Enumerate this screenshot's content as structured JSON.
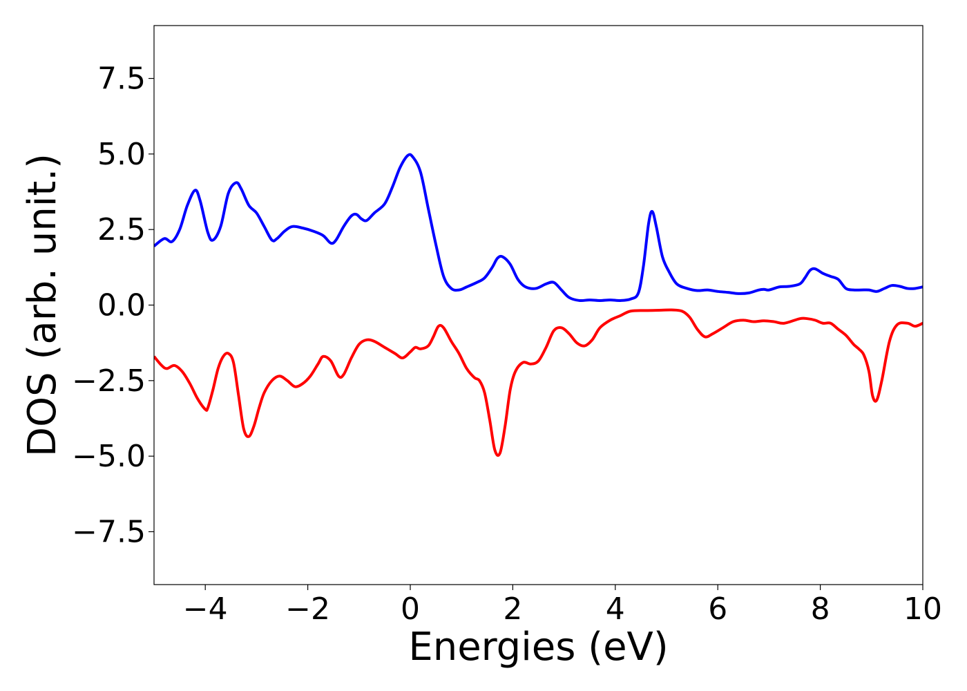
{
  "chart_data": {
    "type": "line",
    "title": "",
    "xlabel": "Energies (eV)",
    "ylabel": "DOS (arb. unit.)",
    "xlim": [
      -5,
      10
    ],
    "ylim": [
      -9.25,
      9.25
    ],
    "xticks": [
      -4,
      -2,
      0,
      2,
      4,
      6,
      8,
      10
    ],
    "xtick_labels": [
      "−4",
      "−2",
      "0",
      "2",
      "4",
      "6",
      "8",
      "10"
    ],
    "yticks": [
      7.5,
      5.0,
      2.5,
      0.0,
      -2.5,
      -5.0,
      -7.5
    ],
    "ytick_labels": [
      "7.5",
      "5.0",
      "2.5",
      "0.0",
      "−2.5",
      "−5.0",
      "−7.5"
    ],
    "grid": false,
    "legend": "none",
    "series": [
      {
        "color": "#0000ff",
        "x": [
          -5.0,
          -4.8,
          -4.65,
          -4.5,
          -4.35,
          -4.2,
          -4.1,
          -3.95,
          -3.85,
          -3.7,
          -3.55,
          -3.4,
          -3.3,
          -3.15,
          -3.0,
          -2.85,
          -2.7,
          -2.6,
          -2.45,
          -2.3,
          -2.1,
          -1.9,
          -1.7,
          -1.55,
          -1.45,
          -1.3,
          -1.15,
          -1.05,
          -0.95,
          -0.85,
          -0.7,
          -0.5,
          -0.35,
          -0.2,
          -0.05,
          0.05,
          0.2,
          0.35,
          0.5,
          0.65,
          0.8,
          0.95,
          1.1,
          1.3,
          1.45,
          1.6,
          1.7,
          1.8,
          1.95,
          2.1,
          2.25,
          2.45,
          2.65,
          2.8,
          2.95,
          3.1,
          3.3,
          3.5,
          3.7,
          3.9,
          4.1,
          4.3,
          4.45,
          4.55,
          4.65,
          4.72,
          4.8,
          4.92,
          5.05,
          5.2,
          5.4,
          5.6,
          5.8,
          6.0,
          6.2,
          6.4,
          6.6,
          6.8,
          6.9,
          7.0,
          7.2,
          7.4,
          7.6,
          7.7,
          7.8,
          7.9,
          8.05,
          8.2,
          8.35,
          8.5,
          8.65,
          8.8,
          8.95,
          9.1,
          9.25,
          9.4,
          9.55,
          9.7,
          9.85,
          10.0
        ],
        "y": [
          1.95,
          2.2,
          2.1,
          2.5,
          3.3,
          3.8,
          3.45,
          2.4,
          2.15,
          2.6,
          3.7,
          4.05,
          3.85,
          3.3,
          3.05,
          2.6,
          2.15,
          2.2,
          2.45,
          2.6,
          2.55,
          2.45,
          2.3,
          2.05,
          2.15,
          2.6,
          2.95,
          3.0,
          2.85,
          2.8,
          3.05,
          3.35,
          3.9,
          4.55,
          4.95,
          4.9,
          4.4,
          3.2,
          2.0,
          0.95,
          0.55,
          0.5,
          0.6,
          0.75,
          0.9,
          1.25,
          1.55,
          1.6,
          1.35,
          0.85,
          0.6,
          0.55,
          0.7,
          0.75,
          0.5,
          0.25,
          0.15,
          0.17,
          0.15,
          0.17,
          0.15,
          0.2,
          0.4,
          1.3,
          2.7,
          3.1,
          2.6,
          1.6,
          1.1,
          0.7,
          0.55,
          0.48,
          0.5,
          0.45,
          0.42,
          0.38,
          0.4,
          0.5,
          0.52,
          0.5,
          0.6,
          0.62,
          0.7,
          0.9,
          1.15,
          1.2,
          1.05,
          0.95,
          0.85,
          0.55,
          0.5,
          0.5,
          0.5,
          0.45,
          0.55,
          0.65,
          0.62,
          0.55,
          0.55,
          0.6
        ]
      },
      {
        "color": "#ff0000",
        "x": [
          -5.0,
          -4.85,
          -4.75,
          -4.6,
          -4.45,
          -4.3,
          -4.15,
          -4.0,
          -3.95,
          -3.85,
          -3.75,
          -3.65,
          -3.55,
          -3.45,
          -3.35,
          -3.25,
          -3.15,
          -3.05,
          -2.95,
          -2.85,
          -2.7,
          -2.55,
          -2.4,
          -2.25,
          -2.1,
          -1.95,
          -1.8,
          -1.7,
          -1.55,
          -1.4,
          -1.3,
          -1.15,
          -1.0,
          -0.85,
          -0.7,
          -0.5,
          -0.3,
          -0.15,
          0.0,
          0.1,
          0.2,
          0.35,
          0.45,
          0.55,
          0.65,
          0.8,
          0.95,
          1.1,
          1.25,
          1.35,
          1.45,
          1.55,
          1.65,
          1.75,
          1.85,
          1.95,
          2.05,
          2.2,
          2.35,
          2.5,
          2.65,
          2.8,
          2.95,
          3.1,
          3.25,
          3.4,
          3.55,
          3.7,
          3.9,
          4.1,
          4.3,
          4.6,
          4.9,
          5.1,
          5.3,
          5.45,
          5.6,
          5.75,
          5.9,
          6.1,
          6.3,
          6.5,
          6.7,
          6.9,
          7.1,
          7.3,
          7.6,
          7.75,
          7.9,
          8.05,
          8.2,
          8.35,
          8.5,
          8.65,
          8.75,
          8.85,
          8.95,
          9.02,
          9.1,
          9.2,
          9.35,
          9.5,
          9.7,
          9.85,
          10.0
        ],
        "y": [
          -1.7,
          -2.0,
          -2.1,
          -2.0,
          -2.2,
          -2.6,
          -3.1,
          -3.45,
          -3.4,
          -2.8,
          -2.1,
          -1.7,
          -1.6,
          -1.9,
          -3.0,
          -4.1,
          -4.35,
          -4.0,
          -3.4,
          -2.9,
          -2.5,
          -2.35,
          -2.5,
          -2.7,
          -2.6,
          -2.35,
          -1.95,
          -1.7,
          -1.85,
          -2.35,
          -2.3,
          -1.75,
          -1.3,
          -1.15,
          -1.2,
          -1.4,
          -1.6,
          -1.75,
          -1.55,
          -1.4,
          -1.45,
          -1.35,
          -1.05,
          -0.7,
          -0.75,
          -1.2,
          -1.6,
          -2.1,
          -2.4,
          -2.5,
          -2.9,
          -3.8,
          -4.8,
          -4.9,
          -4.0,
          -2.8,
          -2.2,
          -1.9,
          -1.95,
          -1.85,
          -1.4,
          -0.85,
          -0.75,
          -0.95,
          -1.25,
          -1.35,
          -1.15,
          -0.75,
          -0.5,
          -0.35,
          -0.2,
          -0.18,
          -0.17,
          -0.16,
          -0.2,
          -0.4,
          -0.8,
          -1.05,
          -0.95,
          -0.75,
          -0.55,
          -0.5,
          -0.55,
          -0.52,
          -0.55,
          -0.6,
          -0.45,
          -0.45,
          -0.5,
          -0.6,
          -0.6,
          -0.8,
          -1.0,
          -1.3,
          -1.45,
          -1.65,
          -2.2,
          -3.0,
          -3.15,
          -2.5,
          -1.2,
          -0.65,
          -0.6,
          -0.7,
          -0.6
        ]
      }
    ]
  }
}
